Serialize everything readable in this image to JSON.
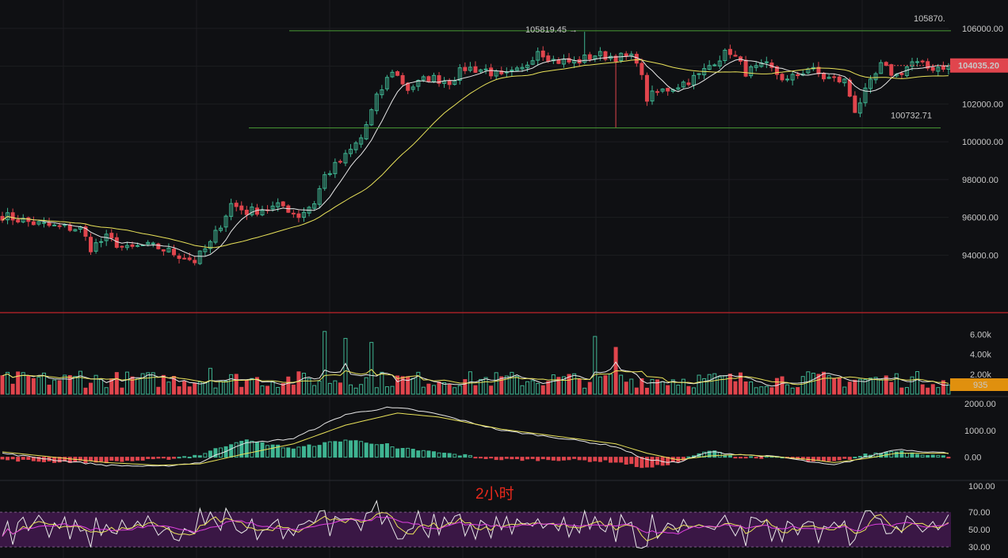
{
  "timeframe_label": "2小时",
  "colors": {
    "up": "#3fb592",
    "down": "#e0454d",
    "ma_fast": "#e8e8e8",
    "ma_slow": "#eae35a",
    "hline": "#4a9c34",
    "rsi_band": "#3a1745",
    "rsi_line3": "#e040e0",
    "price_badge": "#e0454d",
    "volume_badge": "#e0900e"
  },
  "chart_data": [
    {
      "type": "candlestick",
      "panel": "price",
      "y_ticks": [
        94000,
        96000,
        98000,
        100000,
        102000,
        104000,
        106000
      ],
      "y_tick_labels": [
        "94000.00",
        "96000.00",
        "98000.00",
        "100000.00",
        "102000.00",
        "104000.00",
        "106000.00"
      ],
      "ylim": [
        91000,
        107500
      ],
      "current_price": 104035.2,
      "current_price_label": "104035.20",
      "high_annotation": {
        "value": 105819.45,
        "label": "105819.45 →"
      },
      "horizontal_lines": [
        {
          "value": 105870,
          "label": "105870."
        },
        {
          "value": 100732.71,
          "label": "100732.71"
        }
      ],
      "close_anchors": [
        [
          0,
          96100
        ],
        [
          6,
          95700
        ],
        [
          10,
          95500
        ],
        [
          15,
          95400
        ],
        [
          17,
          94400
        ],
        [
          20,
          94900
        ],
        [
          24,
          94300
        ],
        [
          27,
          94500
        ],
        [
          30,
          94400
        ],
        [
          34,
          94000
        ],
        [
          37,
          93700
        ],
        [
          40,
          94600
        ],
        [
          44,
          96700
        ],
        [
          47,
          96300
        ],
        [
          54,
          96600
        ],
        [
          57,
          96100
        ],
        [
          60,
          96800
        ],
        [
          62,
          98200
        ],
        [
          66,
          99200
        ],
        [
          69,
          100200
        ],
        [
          72,
          102300
        ],
        [
          75,
          103800
        ],
        [
          78,
          102800
        ],
        [
          82,
          103400
        ],
        [
          86,
          103200
        ],
        [
          89,
          103900
        ],
        [
          93,
          103800
        ],
        [
          96,
          103400
        ],
        [
          100,
          103800
        ],
        [
          103,
          104900
        ],
        [
          106,
          104300
        ],
        [
          110,
          104200
        ],
        [
          114,
          104600
        ],
        [
          118,
          104500
        ],
        [
          122,
          104400
        ],
        [
          124,
          102300
        ],
        [
          126,
          102600
        ],
        [
          130,
          103000
        ],
        [
          134,
          103500
        ],
        [
          137,
          104300
        ],
        [
          140,
          104800
        ],
        [
          143,
          103700
        ],
        [
          147,
          104000
        ],
        [
          151,
          103200
        ],
        [
          155,
          103900
        ],
        [
          158,
          103400
        ],
        [
          162,
          103200
        ],
        [
          164,
          101700
        ],
        [
          166,
          102600
        ],
        [
          169,
          104000
        ],
        [
          172,
          103500
        ],
        [
          175,
          104200
        ],
        [
          178,
          103900
        ],
        [
          182,
          104035.2
        ]
      ],
      "ma_lines": [
        "MA fast",
        "MA slow"
      ]
    },
    {
      "type": "bar",
      "panel": "volume",
      "y_ticks": [
        2000,
        4000,
        6000
      ],
      "y_tick_labels": [
        "2.00k",
        "4.00k",
        "6.00k"
      ],
      "current_volume_label": "935",
      "ylim": [
        0,
        7000
      ],
      "spikes": [
        [
          15,
          2300
        ],
        [
          40,
          2600
        ],
        [
          62,
          6300
        ],
        [
          66,
          5600
        ],
        [
          71,
          5200
        ],
        [
          114,
          5800
        ],
        [
          118,
          4700
        ]
      ]
    },
    {
      "type": "bar+line",
      "panel": "macd",
      "y_ticks": [
        0,
        1000,
        2000
      ],
      "y_tick_labels": [
        "0.00",
        "1000.00",
        "2000.00"
      ],
      "ylim": [
        -750,
        2150
      ],
      "dif_anchors": [
        [
          0,
          150
        ],
        [
          10,
          -100
        ],
        [
          20,
          -300
        ],
        [
          30,
          -350
        ],
        [
          38,
          -200
        ],
        [
          46,
          500
        ],
        [
          56,
          700
        ],
        [
          66,
          1600
        ],
        [
          74,
          1850
        ],
        [
          78,
          1800
        ],
        [
          84,
          1600
        ],
        [
          96,
          1000
        ],
        [
          108,
          700
        ],
        [
          118,
          400
        ],
        [
          124,
          -100
        ],
        [
          130,
          -200
        ],
        [
          136,
          200
        ],
        [
          142,
          100
        ],
        [
          150,
          0
        ],
        [
          156,
          -200
        ],
        [
          160,
          -300
        ],
        [
          166,
          0
        ],
        [
          172,
          300
        ],
        [
          182,
          150
        ]
      ],
      "dea_anchors": [
        [
          0,
          200
        ],
        [
          10,
          0
        ],
        [
          20,
          -200
        ],
        [
          30,
          -300
        ],
        [
          38,
          -250
        ],
        [
          46,
          100
        ],
        [
          56,
          500
        ],
        [
          66,
          1200
        ],
        [
          76,
          1650
        ],
        [
          84,
          1500
        ],
        [
          96,
          1050
        ],
        [
          108,
          750
        ],
        [
          118,
          500
        ],
        [
          124,
          150
        ],
        [
          130,
          -100
        ],
        [
          136,
          50
        ],
        [
          142,
          100
        ],
        [
          150,
          0
        ],
        [
          156,
          -100
        ],
        [
          160,
          -200
        ],
        [
          166,
          -50
        ],
        [
          172,
          150
        ],
        [
          182,
          150
        ]
      ]
    },
    {
      "type": "line",
      "panel": "rsi",
      "y_ticks": [
        30,
        50,
        70,
        100
      ],
      "y_tick_labels": [
        "30.00",
        "50.00",
        "70.00",
        "100.00"
      ],
      "ylim": [
        20,
        102
      ],
      "band": [
        30,
        70
      ]
    }
  ]
}
